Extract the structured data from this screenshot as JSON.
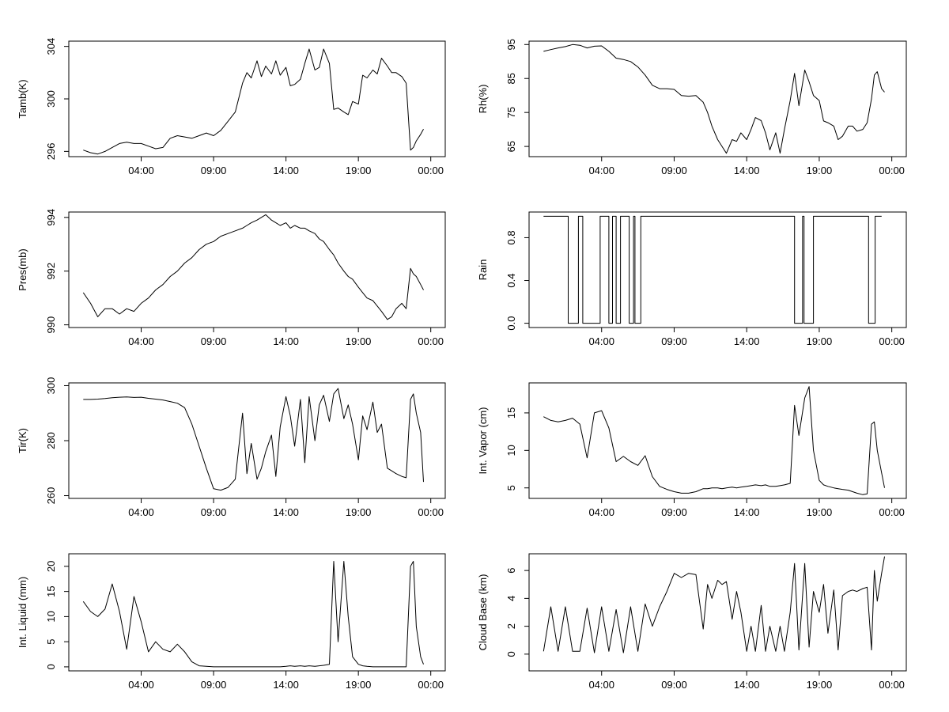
{
  "chart_data": [
    {
      "id": "tamb",
      "type": "line",
      "ylabel": "Tamb(K)",
      "x_ticks": [
        "04:00",
        "09:00",
        "14:00",
        "19:00",
        "00:00"
      ],
      "x_tick_hours": [
        4,
        9,
        14,
        19,
        24
      ],
      "xlim": [
        -1,
        25
      ],
      "y_ticks": [
        296,
        300,
        304
      ],
      "ylim": [
        295.6,
        304.4
      ],
      "x": [
        0.0,
        0.5,
        1.0,
        1.5,
        2.0,
        2.5,
        3.0,
        3.5,
        4.0,
        4.5,
        5.0,
        5.5,
        6.0,
        6.5,
        7.0,
        7.5,
        8.0,
        8.5,
        9.0,
        9.5,
        10.0,
        10.5,
        11.0,
        11.3,
        11.6,
        12.0,
        12.3,
        12.6,
        13.0,
        13.3,
        13.6,
        14.0,
        14.3,
        14.6,
        15.0,
        15.3,
        15.6,
        16.0,
        16.3,
        16.6,
        17.0,
        17.3,
        17.6,
        18.0,
        18.3,
        18.6,
        19.0,
        19.3,
        19.6,
        20.0,
        20.3,
        20.6,
        21.0,
        21.3,
        21.6,
        22.0,
        22.3,
        22.6,
        22.8,
        23.0,
        23.3,
        23.5
      ],
      "values": [
        296.1,
        295.9,
        295.8,
        296.0,
        296.3,
        296.6,
        296.7,
        296.6,
        296.6,
        296.4,
        296.2,
        296.3,
        297.0,
        297.2,
        297.1,
        297.0,
        297.2,
        297.4,
        297.2,
        297.6,
        298.3,
        299.0,
        301.2,
        302.0,
        301.6,
        302.9,
        301.7,
        302.5,
        301.9,
        302.9,
        301.8,
        302.4,
        301.0,
        301.1,
        301.5,
        302.7,
        303.8,
        302.2,
        302.4,
        303.8,
        302.7,
        299.2,
        299.3,
        299.0,
        298.8,
        299.8,
        299.6,
        301.8,
        301.6,
        302.2,
        301.9,
        303.1,
        302.5,
        302.0,
        302.0,
        301.7,
        301.2,
        296.1,
        296.3,
        296.8,
        297.3,
        297.7
      ]
    },
    {
      "id": "rh",
      "type": "line",
      "ylabel": "Rh(%)",
      "x_ticks": [
        "04:00",
        "09:00",
        "14:00",
        "19:00",
        "00:00"
      ],
      "x_tick_hours": [
        4,
        9,
        14,
        19,
        24
      ],
      "xlim": [
        -1,
        25
      ],
      "y_ticks": [
        65,
        75,
        85,
        95
      ],
      "ylim": [
        62,
        96
      ],
      "x": [
        0.0,
        0.5,
        1.0,
        1.5,
        2.0,
        2.5,
        3.0,
        3.5,
        4.0,
        4.5,
        5.0,
        5.5,
        6.0,
        6.5,
        7.0,
        7.5,
        8.0,
        8.5,
        9.0,
        9.5,
        10.0,
        10.5,
        11.0,
        11.3,
        11.6,
        12.0,
        12.3,
        12.6,
        13.0,
        13.3,
        13.6,
        14.0,
        14.3,
        14.6,
        15.0,
        15.3,
        15.6,
        16.0,
        16.3,
        16.6,
        17.0,
        17.3,
        17.6,
        18.0,
        18.3,
        18.6,
        19.0,
        19.3,
        19.6,
        20.0,
        20.3,
        20.6,
        21.0,
        21.3,
        21.6,
        22.0,
        22.3,
        22.6,
        22.8,
        23.0,
        23.3,
        23.5
      ],
      "values": [
        93.0,
        93.5,
        94.0,
        94.4,
        95.0,
        94.8,
        94.0,
        94.5,
        94.6,
        93.0,
        91.0,
        90.6,
        90.0,
        88.4,
        86.0,
        83.0,
        82.0,
        82.0,
        81.8,
        80.0,
        79.8,
        80.0,
        78.0,
        75.0,
        71.0,
        67.0,
        65.0,
        63.0,
        67.0,
        66.5,
        69.0,
        67.0,
        70.0,
        73.5,
        72.6,
        69.0,
        64.0,
        69.0,
        63.0,
        70.0,
        78.5,
        86.5,
        77.0,
        87.5,
        84.0,
        80.0,
        78.5,
        72.5,
        72.0,
        71.0,
        67.0,
        68.0,
        71.0,
        71.0,
        69.5,
        70.0,
        72.0,
        79.0,
        86.0,
        87.0,
        82.0,
        81.0
      ]
    },
    {
      "id": "pres",
      "type": "line",
      "ylabel": "Pres(mb)",
      "x_ticks": [
        "04:00",
        "09:00",
        "14:00",
        "19:00",
        "00:00"
      ],
      "x_tick_hours": [
        4,
        9,
        14,
        19,
        24
      ],
      "xlim": [
        -1,
        25
      ],
      "y_ticks": [
        990,
        992,
        994
      ],
      "ylim": [
        989.9,
        994.2
      ],
      "x": [
        0.0,
        0.5,
        1.0,
        1.5,
        2.0,
        2.5,
        3.0,
        3.5,
        4.0,
        4.5,
        5.0,
        5.5,
        6.0,
        6.5,
        7.0,
        7.5,
        8.0,
        8.5,
        9.0,
        9.5,
        10.0,
        10.5,
        11.0,
        11.3,
        11.6,
        12.0,
        12.3,
        12.6,
        13.0,
        13.3,
        13.6,
        14.0,
        14.3,
        14.6,
        15.0,
        15.3,
        15.6,
        16.0,
        16.3,
        16.6,
        17.0,
        17.3,
        17.6,
        18.0,
        18.3,
        18.6,
        19.0,
        19.3,
        19.6,
        20.0,
        20.3,
        20.6,
        21.0,
        21.3,
        21.6,
        22.0,
        22.3,
        22.6,
        22.8,
        23.0,
        23.3,
        23.5
      ],
      "values": [
        991.2,
        990.8,
        990.3,
        990.6,
        990.6,
        990.4,
        990.6,
        990.5,
        990.8,
        991.0,
        991.3,
        991.5,
        991.8,
        992.0,
        992.3,
        992.5,
        992.8,
        993.0,
        993.1,
        993.3,
        993.4,
        993.5,
        993.6,
        993.7,
        993.8,
        993.9,
        994.0,
        994.1,
        993.9,
        993.8,
        993.7,
        993.8,
        993.6,
        993.7,
        993.6,
        993.6,
        993.5,
        993.4,
        993.2,
        993.1,
        992.8,
        992.6,
        992.3,
        992.0,
        991.8,
        991.7,
        991.4,
        991.2,
        991.0,
        990.9,
        990.7,
        990.5,
        990.2,
        990.3,
        990.6,
        990.8,
        990.6,
        992.1,
        991.9,
        991.8,
        991.5,
        991.3
      ]
    },
    {
      "id": "rain",
      "type": "line",
      "ylabel": "Rain",
      "x_ticks": [
        "04:00",
        "09:00",
        "14:00",
        "19:00",
        "00:00"
      ],
      "x_tick_hours": [
        4,
        9,
        14,
        19,
        24
      ],
      "xlim": [
        -1,
        25
      ],
      "y_ticks": [
        0.0,
        0.4,
        0.8
      ],
      "y_tick_labels": [
        "0.0",
        "0.4",
        "0.8"
      ],
      "ylim": [
        -0.04,
        1.04
      ],
      "x": [
        0.0,
        1.7,
        1.7,
        2.4,
        2.4,
        2.7,
        2.7,
        3.9,
        3.9,
        4.5,
        4.5,
        4.75,
        4.75,
        5.0,
        5.0,
        5.3,
        5.3,
        5.9,
        5.9,
        6.2,
        6.2,
        6.3,
        6.3,
        6.7,
        6.7,
        17.3,
        17.3,
        17.85,
        17.85,
        17.95,
        17.95,
        18.6,
        18.6,
        22.4,
        22.4,
        22.85,
        22.85,
        23.3
      ],
      "values": [
        1,
        1,
        0,
        0,
        1,
        1,
        0,
        0,
        1,
        1,
        0,
        0,
        1,
        1,
        0,
        0,
        1,
        1,
        0,
        0,
        1,
        1,
        0,
        0,
        1,
        1,
        0,
        0,
        1,
        1,
        0,
        0,
        1,
        1,
        0,
        0,
        1,
        1
      ]
    },
    {
      "id": "tir",
      "type": "line",
      "ylabel": "Tir(K)",
      "x_ticks": [
        "04:00",
        "09:00",
        "14:00",
        "19:00",
        "00:00"
      ],
      "x_tick_hours": [
        4,
        9,
        14,
        19,
        24
      ],
      "xlim": [
        -1,
        25
      ],
      "y_ticks": [
        260,
        280,
        300
      ],
      "ylim": [
        259,
        301
      ],
      "x": [
        0.0,
        0.5,
        1.0,
        1.5,
        2.0,
        2.5,
        3.0,
        3.5,
        4.0,
        4.5,
        5.0,
        5.5,
        6.0,
        6.5,
        7.0,
        7.5,
        8.0,
        8.5,
        9.0,
        9.5,
        10.0,
        10.5,
        11.0,
        11.3,
        11.6,
        12.0,
        12.3,
        12.6,
        13.0,
        13.3,
        13.6,
        14.0,
        14.3,
        14.6,
        15.0,
        15.3,
        15.6,
        16.0,
        16.3,
        16.6,
        17.0,
        17.3,
        17.6,
        18.0,
        18.3,
        18.6,
        19.0,
        19.3,
        19.6,
        20.0,
        20.3,
        20.6,
        21.0,
        21.3,
        21.6,
        22.0,
        22.3,
        22.6,
        22.8,
        23.0,
        23.3,
        23.5
      ],
      "values": [
        295.0,
        295.0,
        295.1,
        295.3,
        295.6,
        295.8,
        295.9,
        295.7,
        295.8,
        295.4,
        295.1,
        294.8,
        294.2,
        293.6,
        292.0,
        286.0,
        278.0,
        270.0,
        262.5,
        262.0,
        263.0,
        266.0,
        290.0,
        268.0,
        279.0,
        266.0,
        270.0,
        276.0,
        282.0,
        267.0,
        285.0,
        296.0,
        289.0,
        278.0,
        295.0,
        272.0,
        296.0,
        280.0,
        293.0,
        296.5,
        287.0,
        297.0,
        299.0,
        288.0,
        293.0,
        286.0,
        273.0,
        289.0,
        284.0,
        294.0,
        283.0,
        286.0,
        270.0,
        269.0,
        268.0,
        267.0,
        266.5,
        295.0,
        297.0,
        290.0,
        283.0,
        265.0
      ]
    },
    {
      "id": "vapor",
      "type": "line",
      "ylabel": "Int. Vapor (cm)",
      "x_ticks": [
        "04:00",
        "09:00",
        "14:00",
        "19:00",
        "00:00"
      ],
      "x_tick_hours": [
        4,
        9,
        14,
        19,
        24
      ],
      "xlim": [
        -1,
        25
      ],
      "y_ticks": [
        5,
        10,
        15
      ],
      "ylim": [
        3.6,
        19.0
      ],
      "x": [
        0.0,
        0.5,
        1.0,
        1.5,
        2.0,
        2.5,
        3.0,
        3.5,
        4.0,
        4.5,
        5.0,
        5.5,
        6.0,
        6.5,
        7.0,
        7.5,
        8.0,
        8.5,
        9.0,
        9.5,
        10.0,
        10.5,
        11.0,
        11.3,
        11.6,
        12.0,
        12.3,
        12.6,
        13.0,
        13.3,
        13.6,
        14.0,
        14.3,
        14.6,
        15.0,
        15.3,
        15.6,
        16.0,
        16.3,
        16.6,
        17.0,
        17.3,
        17.6,
        18.0,
        18.3,
        18.6,
        19.0,
        19.3,
        19.6,
        20.0,
        20.3,
        20.6,
        21.0,
        21.3,
        21.6,
        22.0,
        22.3,
        22.6,
        22.8,
        23.0,
        23.3,
        23.5
      ],
      "values": [
        14.5,
        14.0,
        13.8,
        14.0,
        14.3,
        13.5,
        9.0,
        15.0,
        15.3,
        13.0,
        8.5,
        9.2,
        8.5,
        8.0,
        9.3,
        6.5,
        5.2,
        4.8,
        4.5,
        4.3,
        4.3,
        4.5,
        4.9,
        4.9,
        5.0,
        5.0,
        4.9,
        5.0,
        5.1,
        5.0,
        5.1,
        5.2,
        5.3,
        5.4,
        5.3,
        5.4,
        5.2,
        5.2,
        5.3,
        5.4,
        5.6,
        16.0,
        12.0,
        17.0,
        18.5,
        10.0,
        6.0,
        5.4,
        5.2,
        5.0,
        4.9,
        4.8,
        4.7,
        4.5,
        4.3,
        4.1,
        4.2,
        13.5,
        13.8,
        10.0,
        7.0,
        5.0
      ]
    },
    {
      "id": "liquid",
      "type": "line",
      "ylabel": "Int. Liquid (mm)",
      "x_ticks": [
        "04:00",
        "09:00",
        "14:00",
        "19:00",
        "00:00"
      ],
      "x_tick_hours": [
        4,
        9,
        14,
        19,
        24
      ],
      "xlim": [
        -1,
        25
      ],
      "y_ticks": [
        0,
        5,
        10,
        15,
        20
      ],
      "ylim": [
        -0.8,
        22.5
      ],
      "x": [
        0.0,
        0.5,
        1.0,
        1.5,
        2.0,
        2.5,
        3.0,
        3.5,
        4.0,
        4.5,
        5.0,
        5.5,
        6.0,
        6.5,
        7.0,
        7.5,
        8.0,
        8.5,
        9.0,
        9.5,
        10.0,
        10.5,
        11.0,
        11.3,
        11.6,
        12.0,
        12.3,
        12.6,
        13.0,
        13.3,
        13.6,
        14.0,
        14.3,
        14.6,
        15.0,
        15.3,
        15.6,
        16.0,
        16.3,
        16.6,
        17.0,
        17.3,
        17.6,
        18.0,
        18.3,
        18.6,
        19.0,
        19.3,
        19.6,
        20.0,
        20.3,
        20.6,
        21.0,
        21.3,
        21.6,
        22.0,
        22.3,
        22.6,
        22.8,
        23.0,
        23.3,
        23.5
      ],
      "values": [
        13.0,
        11.0,
        10.0,
        11.5,
        16.5,
        11.0,
        3.5,
        14.0,
        9.0,
        3.0,
        5.0,
        3.5,
        3.0,
        4.5,
        3.0,
        1.0,
        0.2,
        0.1,
        0.0,
        0.0,
        0.0,
        0.0,
        0.0,
        0.0,
        0.0,
        0.0,
        0.0,
        0.0,
        0.0,
        0.0,
        0.0,
        0.1,
        0.2,
        0.1,
        0.2,
        0.1,
        0.2,
        0.1,
        0.2,
        0.3,
        0.5,
        21.0,
        5.0,
        21.0,
        10.0,
        2.0,
        0.5,
        0.2,
        0.1,
        0.0,
        0.0,
        0.0,
        0.0,
        0.0,
        0.0,
        0.0,
        0.0,
        20.0,
        21.0,
        8.0,
        2.0,
        0.5
      ]
    },
    {
      "id": "cloudbase",
      "type": "line",
      "ylabel": "Cloud Base (km)",
      "x_ticks": [
        "04:00",
        "09:00",
        "14:00",
        "19:00",
        "00:00"
      ],
      "x_tick_hours": [
        4,
        9,
        14,
        19,
        24
      ],
      "xlim": [
        -1,
        25
      ],
      "y_ticks": [
        0,
        2,
        4,
        6
      ],
      "ylim": [
        -1.2,
        7.2
      ],
      "x": [
        0.0,
        0.5,
        1.0,
        1.5,
        2.0,
        2.5,
        3.0,
        3.5,
        4.0,
        4.5,
        5.0,
        5.5,
        6.0,
        6.5,
        7.0,
        7.5,
        8.0,
        8.5,
        9.0,
        9.5,
        10.0,
        10.5,
        11.0,
        11.3,
        11.6,
        12.0,
        12.3,
        12.6,
        13.0,
        13.3,
        13.6,
        14.0,
        14.3,
        14.6,
        15.0,
        15.3,
        15.6,
        16.0,
        16.3,
        16.6,
        17.0,
        17.3,
        17.6,
        18.0,
        18.3,
        18.6,
        19.0,
        19.3,
        19.6,
        20.0,
        20.3,
        20.6,
        21.0,
        21.3,
        21.6,
        22.0,
        22.3,
        22.6,
        22.8,
        23.0,
        23.3,
        23.5
      ],
      "values": [
        0.2,
        3.4,
        0.2,
        3.4,
        0.2,
        0.2,
        3.3,
        0.1,
        3.4,
        0.2,
        3.2,
        0.1,
        3.4,
        0.2,
        3.6,
        2.0,
        3.4,
        4.5,
        5.8,
        5.5,
        5.8,
        5.7,
        1.8,
        5.0,
        4.0,
        5.3,
        5.0,
        5.2,
        2.5,
        4.5,
        3.0,
        0.2,
        2.0,
        0.2,
        3.5,
        0.2,
        2.0,
        0.2,
        2.0,
        0.2,
        3.0,
        6.5,
        0.3,
        6.5,
        0.5,
        4.5,
        3.0,
        5.0,
        1.5,
        4.6,
        0.3,
        4.2,
        4.5,
        4.6,
        4.5,
        4.7,
        4.8,
        0.3,
        6.0,
        3.8,
        5.8,
        7.0
      ]
    }
  ]
}
